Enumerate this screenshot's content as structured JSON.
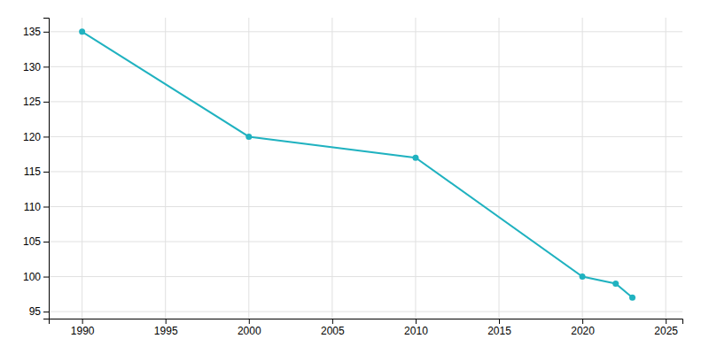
{
  "chart_data": {
    "type": "line",
    "x": [
      1990,
      2000,
      2010,
      2020,
      2022,
      2023
    ],
    "values": [
      135,
      120,
      117,
      100,
      99,
      97
    ],
    "color": "#20b2c0",
    "marker": "circle",
    "xlim": [
      1988,
      2026
    ],
    "ylim": [
      94,
      137
    ],
    "xticks": [
      1990,
      1995,
      2000,
      2005,
      2010,
      2015,
      2020,
      2025
    ],
    "yticks": [
      95,
      100,
      105,
      110,
      115,
      120,
      125,
      130,
      135
    ],
    "grid": true
  }
}
